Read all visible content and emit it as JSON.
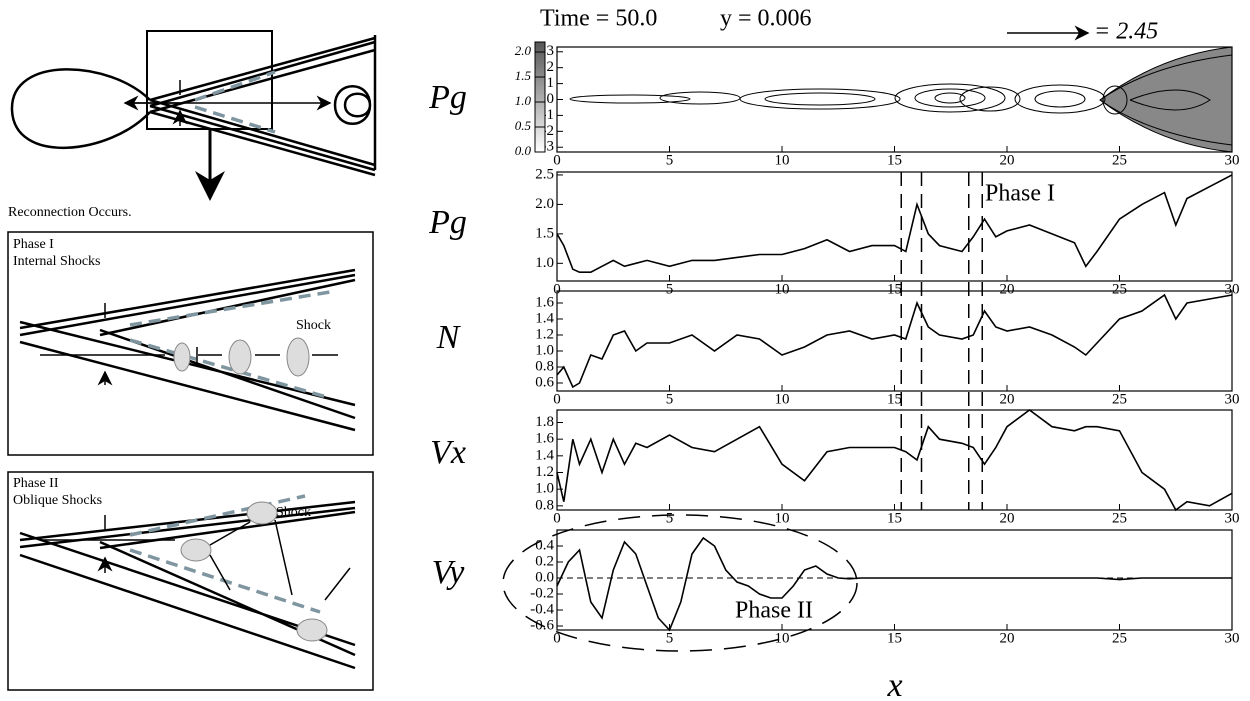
{
  "chart_data": [
    {
      "type": "contour",
      "title": "Time = 50.0",
      "subtitle": "y = 0.006",
      "annotations": [
        "= 2.45"
      ],
      "ylabel": "Pg",
      "xlim": [
        0,
        30
      ],
      "xticks": [
        0,
        5,
        10,
        15,
        20,
        25,
        30
      ],
      "ylim": [
        -3.3,
        3.3
      ],
      "yticks": [
        -3,
        -2,
        -1,
        0,
        1,
        2,
        3
      ],
      "colorbar_lim": [
        0,
        2.2
      ],
      "colorbar_ticks": [
        {
          "value": 0,
          "label": "0.0"
        },
        0.5,
        {
          "value": 1,
          "label": "1.0"
        },
        1.5,
        {
          "value": 2,
          "label": "2.0"
        }
      ]
    },
    {
      "type": "line",
      "ylabel": "Pg",
      "annotations": [
        "Phase I"
      ],
      "vlines": [
        15.3,
        16.2,
        18.3,
        18.9
      ],
      "x": [
        0,
        0.3,
        0.7,
        1,
        1.5,
        2,
        2.5,
        3,
        3.5,
        4,
        5,
        6,
        7,
        8,
        9,
        10,
        11,
        12,
        13,
        14,
        15,
        15.5,
        16,
        16.5,
        17,
        18,
        18.5,
        19,
        19.5,
        20,
        21,
        22,
        23,
        23.5,
        24,
        25,
        26,
        27,
        27.5,
        28,
        29,
        30
      ],
      "values": [
        1.5,
        1.3,
        0.9,
        0.85,
        0.85,
        0.95,
        1.05,
        0.95,
        1.0,
        1.05,
        0.95,
        1.05,
        1.05,
        1.1,
        1.15,
        1.15,
        1.25,
        1.4,
        1.2,
        1.3,
        1.3,
        1.2,
        2.0,
        1.5,
        1.3,
        1.2,
        1.45,
        1.75,
        1.45,
        1.55,
        1.65,
        1.5,
        1.35,
        0.95,
        1.2,
        1.75,
        2.0,
        2.2,
        1.65,
        2.1,
        2.3,
        2.5
      ],
      "xlim": [
        0,
        30
      ],
      "xticks": [
        0,
        5,
        10,
        15,
        20,
        25,
        30
      ],
      "ylim": [
        0.7,
        2.55
      ],
      "yticks": [
        {
          "value": 1,
          "label": "1.0"
        },
        1.5,
        {
          "value": 2,
          "label": "2.0"
        },
        2.5
      ]
    },
    {
      "type": "line",
      "ylabel": "N",
      "x": [
        0,
        0.3,
        0.7,
        1,
        1.5,
        2,
        2.5,
        3,
        3.5,
        4,
        5,
        6,
        7,
        8,
        9,
        10,
        11,
        12,
        13,
        14,
        15,
        15.5,
        16,
        16.5,
        17,
        18,
        18.5,
        19,
        19.5,
        20,
        21,
        22,
        23,
        23.5,
        24,
        25,
        26,
        27,
        27.5,
        28,
        29,
        30
      ],
      "values": [
        0.7,
        0.8,
        0.55,
        0.6,
        0.95,
        0.9,
        1.2,
        1.25,
        1.0,
        1.1,
        1.1,
        1.2,
        1.0,
        1.2,
        1.15,
        0.95,
        1.05,
        1.2,
        1.25,
        1.15,
        1.2,
        1.15,
        1.6,
        1.3,
        1.2,
        1.15,
        1.2,
        1.5,
        1.3,
        1.25,
        1.3,
        1.2,
        1.05,
        0.95,
        1.1,
        1.4,
        1.5,
        1.7,
        1.4,
        1.6,
        1.65,
        1.7
      ],
      "xlim": [
        0,
        30
      ],
      "xticks": [
        0,
        5,
        10,
        15,
        20,
        25,
        30
      ],
      "ylim": [
        0.5,
        1.75
      ],
      "yticks": [
        0.6,
        0.8,
        {
          "value": 1,
          "label": "1.0"
        },
        1.2,
        1.4,
        1.6
      ]
    },
    {
      "type": "line",
      "ylabel": "Vx",
      "x": [
        0,
        0.3,
        0.7,
        1,
        1.5,
        2,
        2.5,
        3,
        3.5,
        4,
        5,
        6,
        7,
        8,
        9,
        10,
        11,
        12,
        13,
        14,
        15,
        15.5,
        16,
        16.5,
        17,
        18,
        18.5,
        19,
        19.5,
        20,
        21,
        22,
        23,
        23.5,
        24,
        25,
        26,
        27,
        27.5,
        28,
        29,
        30
      ],
      "values": [
        1.2,
        0.85,
        1.6,
        1.3,
        1.6,
        1.2,
        1.6,
        1.3,
        1.55,
        1.5,
        1.65,
        1.5,
        1.45,
        1.6,
        1.75,
        1.3,
        1.1,
        1.45,
        1.5,
        1.5,
        1.5,
        1.45,
        1.35,
        1.75,
        1.6,
        1.55,
        1.5,
        1.3,
        1.5,
        1.75,
        1.95,
        1.75,
        1.7,
        1.75,
        1.75,
        1.7,
        1.2,
        1.0,
        0.75,
        0.85,
        0.8,
        0.95
      ],
      "xlim": [
        0,
        30
      ],
      "xticks": [
        0,
        5,
        10,
        15,
        20,
        25,
        30
      ],
      "ylim": [
        0.75,
        1.95
      ],
      "yticks": [
        0.8,
        {
          "value": 1,
          "label": "1.0"
        },
        1.2,
        1.4,
        1.6,
        1.8
      ]
    },
    {
      "type": "line",
      "ylabel": "Vy",
      "xlabel": "x",
      "annotations": [
        "Phase II"
      ],
      "x": [
        0,
        0.5,
        1,
        1.5,
        2,
        2.5,
        3,
        3.5,
        4,
        4.5,
        5,
        5.5,
        6,
        6.5,
        7,
        7.5,
        8,
        8.5,
        9,
        9.5,
        10,
        10.5,
        11,
        11.5,
        12,
        12.5,
        13,
        13.5,
        14,
        16,
        18,
        20,
        22,
        24,
        25,
        26,
        28,
        30
      ],
      "values": [
        -0.1,
        0.2,
        0.35,
        -0.3,
        -0.5,
        0.1,
        0.45,
        0.3,
        -0.1,
        -0.5,
        -0.65,
        -0.3,
        0.3,
        0.5,
        0.4,
        0.1,
        -0.05,
        -0.1,
        -0.2,
        -0.25,
        -0.25,
        -0.1,
        0.1,
        0.15,
        0.05,
        0.0,
        -0.01,
        0.0,
        0.0,
        0.0,
        0.0,
        0.0,
        0.0,
        0.0,
        -0.02,
        0.0,
        0.0,
        0.0
      ],
      "xlim": [
        0,
        30
      ],
      "xticks": [
        0,
        5,
        10,
        15,
        20,
        25,
        30
      ],
      "ylim": [
        -0.65,
        0.6
      ],
      "yticks": [
        -0.6,
        -0.4,
        -0.2,
        {
          "value": 0,
          "label": "0.0"
        },
        0.2,
        0.4
      ]
    }
  ],
  "diagram": {
    "caption": "Reconnection Occurs.",
    "phase1": {
      "title": "Phase I",
      "subtitle": "Internal Shocks",
      "label": "Shock"
    },
    "phase2": {
      "title": "Phase II",
      "subtitle": "Oblique Shocks",
      "label": "Shock"
    }
  }
}
